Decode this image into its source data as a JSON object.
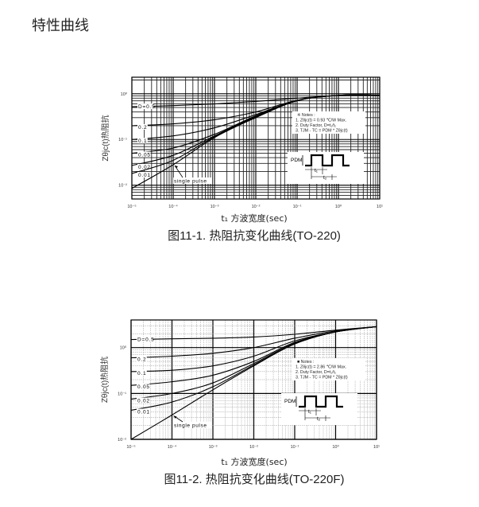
{
  "page": {
    "title": "特性曲线"
  },
  "chart_data": [
    {
      "type": "line",
      "title": "",
      "caption": "图11-1. 热阻抗变化曲线(TO-220)",
      "xlabel": "t₁ 方波宽度(sec)",
      "ylabel": "Zθjc(t)热阻抗",
      "xscale": "log",
      "yscale": "log",
      "xlim": [
        1e-05,
        10
      ],
      "ylim": [
        0.005,
        2.3
      ],
      "grid": true,
      "xticks": [
        "10⁻⁵",
        "10⁻⁴",
        "10⁻³",
        "10⁻²",
        "10⁻¹",
        "10⁰",
        "10¹"
      ],
      "yticks": [
        "10⁻²",
        "10⁻¹",
        "10⁰"
      ],
      "x": [
        1e-05,
        0.0001,
        0.001,
        0.01,
        0.1,
        1,
        10
      ],
      "series": [
        {
          "name": "D=0.5",
          "values": [
            0.52,
            0.55,
            0.6,
            0.68,
            0.8,
            0.92,
            0.93
          ]
        },
        {
          "name": "0.2",
          "values": [
            0.2,
            0.22,
            0.27,
            0.4,
            0.72,
            0.92,
            0.93
          ]
        },
        {
          "name": "0.1",
          "values": [
            0.1,
            0.12,
            0.18,
            0.35,
            0.71,
            0.92,
            0.93
          ]
        },
        {
          "name": "0.05",
          "values": [
            0.05,
            0.065,
            0.13,
            0.33,
            0.71,
            0.92,
            0.93
          ]
        },
        {
          "name": "0.02",
          "values": [
            0.027,
            0.045,
            0.12,
            0.32,
            0.71,
            0.92,
            0.93
          ]
        },
        {
          "name": "0.01",
          "values": [
            0.018,
            0.035,
            0.115,
            0.31,
            0.71,
            0.92,
            0.93
          ]
        },
        {
          "name": "single pulse",
          "values": [
            0.0085,
            0.028,
            0.11,
            0.3,
            0.7,
            0.92,
            0.93
          ]
        }
      ],
      "notes": [
        "※ Notes :",
        "1. Zθjc(t) = 0.93 ℃/W Max.",
        "2. Duty Factor, D=t₁/t₂",
        "3. TJM - TC = PDM * Zθjc(t)"
      ],
      "pulse_labels": {
        "p": "PDM",
        "t1": "t₁",
        "t2": "t₂"
      }
    },
    {
      "type": "line",
      "title": "",
      "caption": "图11-2. 热阻抗变化曲线(TO-220F)",
      "xlabel": "t₁ 方波宽度(sec)",
      "ylabel": "Zθjc(t)热阻抗",
      "xscale": "log",
      "yscale": "log",
      "xlim": [
        1e-05,
        10
      ],
      "ylim": [
        0.01,
        4
      ],
      "grid": true,
      "xticks": [
        "10⁻⁵",
        "10⁻⁴",
        "10⁻³",
        "10⁻²",
        "10⁻¹",
        "10⁰",
        "10¹"
      ],
      "yticks": [
        "10⁻²",
        "10⁻¹",
        "10⁰"
      ],
      "x": [
        1e-05,
        0.0001,
        0.001,
        0.01,
        0.1,
        1,
        10
      ],
      "series": [
        {
          "name": "D=0.5",
          "values": [
            1.5,
            1.55,
            1.6,
            1.7,
            1.95,
            2.4,
            2.86
          ]
        },
        {
          "name": "0.2",
          "values": [
            0.6,
            0.65,
            0.75,
            1.0,
            1.6,
            2.3,
            2.86
          ]
        },
        {
          "name": "0.1",
          "values": [
            0.3,
            0.32,
            0.4,
            0.65,
            1.4,
            2.2,
            2.86
          ]
        },
        {
          "name": "0.05",
          "values": [
            0.15,
            0.18,
            0.25,
            0.5,
            1.3,
            2.2,
            2.86
          ]
        },
        {
          "name": "0.02",
          "values": [
            0.075,
            0.1,
            0.17,
            0.45,
            1.25,
            2.2,
            2.86
          ]
        },
        {
          "name": "0.01",
          "values": [
            0.043,
            0.065,
            0.14,
            0.42,
            1.2,
            2.2,
            2.86
          ]
        },
        {
          "name": "single pulse",
          "values": [
            0.01,
            0.034,
            0.12,
            0.4,
            1.2,
            2.2,
            2.86
          ]
        }
      ],
      "notes": [
        "■ Notes :",
        "1. Zθjc(t) = 2.86 ℃/W Max.",
        "2. Duty Factor, D=t₁/t₂",
        "3. TJM - TC = PDM * Zθjc(t)"
      ],
      "pulse_labels": {
        "p": "PDM",
        "t1": "t₁",
        "t2": "t₂"
      }
    }
  ]
}
